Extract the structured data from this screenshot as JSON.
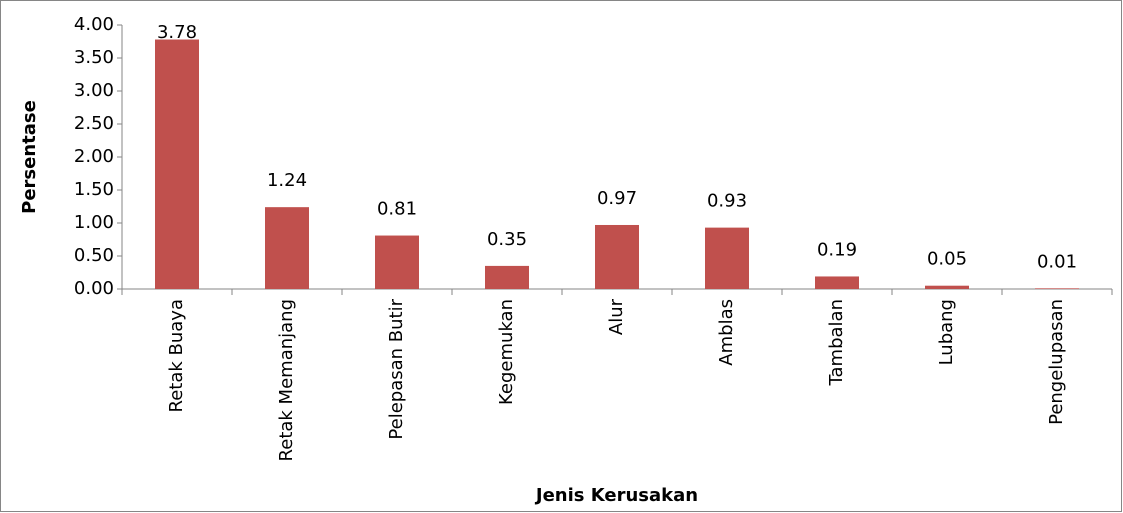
{
  "chart_data": {
    "type": "bar",
    "xlabel": "Jenis Kerusakan",
    "ylabel": "Persentase",
    "categories": [
      "Retak Buaya",
      "Retak Memanjang",
      "Pelepasan Butir",
      "Kegemukan",
      "Alur",
      "Amblas",
      "Tambalan",
      "Lubang",
      "Pengelupasan"
    ],
    "values": [
      3.78,
      1.24,
      0.81,
      0.35,
      0.97,
      0.93,
      0.19,
      0.05,
      0.01
    ],
    "color": "#c0504d",
    "ylim": [
      0,
      4
    ],
    "yticks": [
      {
        "value": 0,
        "label": "0.00"
      },
      {
        "value": 0.5,
        "label": "0.50"
      },
      {
        "value": 1,
        "label": "1.00"
      },
      {
        "value": 1.5,
        "label": "1.50"
      },
      {
        "value": 2,
        "label": "2.00"
      },
      {
        "value": 2.5,
        "label": "2.50"
      },
      {
        "value": 3,
        "label": "3.00"
      },
      {
        "value": 3.5,
        "label": "3.50"
      },
      {
        "value": 4,
        "label": "4.00"
      }
    ],
    "grid": false
  }
}
